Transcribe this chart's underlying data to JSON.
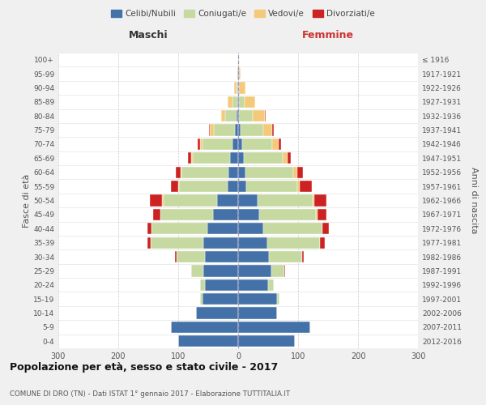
{
  "age_groups": [
    "0-4",
    "5-9",
    "10-14",
    "15-19",
    "20-24",
    "25-29",
    "30-34",
    "35-39",
    "40-44",
    "45-49",
    "50-54",
    "55-59",
    "60-64",
    "65-69",
    "70-74",
    "75-79",
    "80-84",
    "85-89",
    "90-94",
    "95-99",
    "100+"
  ],
  "birth_years": [
    "2012-2016",
    "2007-2011",
    "2002-2006",
    "1997-2001",
    "1992-1996",
    "1987-1991",
    "1982-1986",
    "1977-1981",
    "1972-1976",
    "1967-1971",
    "1962-1966",
    "1957-1961",
    "1952-1956",
    "1947-1951",
    "1942-1946",
    "1937-1941",
    "1932-1936",
    "1927-1931",
    "1922-1926",
    "1917-1921",
    "≤ 1916"
  ],
  "colors": {
    "celibi": "#4472a8",
    "coniugati": "#c5d9a0",
    "vedovi": "#f5c97a",
    "divorziati": "#cc2222"
  },
  "maschi": {
    "celibi": [
      100,
      112,
      70,
      60,
      55,
      58,
      55,
      58,
      52,
      42,
      35,
      18,
      16,
      14,
      10,
      6,
      3,
      2,
      1,
      1,
      0
    ],
    "coniugati": [
      0,
      0,
      0,
      4,
      8,
      20,
      48,
      88,
      92,
      88,
      90,
      80,
      78,
      62,
      50,
      35,
      18,
      8,
      2,
      0,
      0
    ],
    "vedovi": [
      0,
      0,
      0,
      0,
      0,
      0,
      0,
      0,
      0,
      0,
      2,
      2,
      2,
      3,
      4,
      6,
      8,
      8,
      4,
      1,
      0
    ],
    "divorziati": [
      0,
      0,
      0,
      0,
      0,
      0,
      2,
      6,
      8,
      12,
      20,
      12,
      8,
      5,
      4,
      2,
      0,
      0,
      0,
      0,
      0
    ]
  },
  "femmine": {
    "celibi": [
      95,
      120,
      65,
      65,
      50,
      55,
      52,
      48,
      42,
      35,
      32,
      14,
      12,
      9,
      7,
      4,
      2,
      1,
      0,
      1,
      0
    ],
    "coniugati": [
      0,
      0,
      0,
      4,
      10,
      22,
      55,
      88,
      98,
      95,
      92,
      85,
      80,
      65,
      50,
      38,
      22,
      10,
      2,
      0,
      0
    ],
    "vedovi": [
      0,
      0,
      0,
      0,
      0,
      0,
      0,
      1,
      1,
      2,
      3,
      4,
      6,
      8,
      10,
      15,
      20,
      18,
      10,
      3,
      1
    ],
    "divorziati": [
      0,
      0,
      0,
      0,
      0,
      2,
      2,
      8,
      10,
      15,
      20,
      20,
      10,
      6,
      4,
      2,
      2,
      0,
      0,
      0,
      0
    ]
  },
  "title": "Popolazione per età, sesso e stato civile - 2017",
  "subtitle": "COMUNE DI DRO (TN) - Dati ISTAT 1° gennaio 2017 - Elaborazione TUTTITALIA.IT",
  "xlabel_left": "Maschi",
  "xlabel_right": "Femmine",
  "ylabel_left": "Fasce di età",
  "ylabel_right": "Anni di nascita",
  "xlim": 300,
  "legend_labels": [
    "Celibi/Nubili",
    "Coniugati/e",
    "Vedovi/e",
    "Divorziati/e"
  ],
  "bg_color": "#f0f0f0",
  "plot_bg": "#ffffff"
}
